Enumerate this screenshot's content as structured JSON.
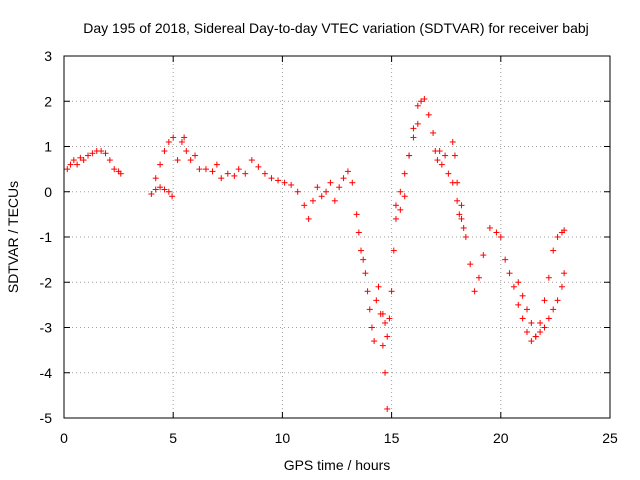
{
  "chart_data": {
    "type": "scatter",
    "title": "Day 195 of 2018, Sidereal Day-to-day VTEC variation (SDTVAR) for receiver babj",
    "xlabel": "GPS time / hours",
    "ylabel": "SDTVAR / TECUs",
    "xlim": [
      0,
      25
    ],
    "ylim": [
      -5,
      3
    ],
    "xticks": [
      0,
      5,
      10,
      15,
      20,
      25
    ],
    "yticks": [
      -5,
      -4,
      -3,
      -2,
      -1,
      0,
      1,
      2,
      3
    ],
    "xtick_labels": [
      "0",
      "5",
      "10",
      "15",
      "20",
      "25"
    ],
    "ytick_labels": [
      "-5",
      "-4",
      "-3",
      "-2",
      "-1",
      "0",
      "1",
      "2",
      "3"
    ],
    "grid": true,
    "marker": "+",
    "color": "#ff0000",
    "series": [
      {
        "name": "SDTVAR",
        "x": [
          0.15,
          0.3,
          0.45,
          0.6,
          0.75,
          0.9,
          1.1,
          1.3,
          1.5,
          1.7,
          1.9,
          2.1,
          2.3,
          2.5,
          2.6,
          4.0,
          4.2,
          4.4,
          4.6,
          4.8,
          4.95,
          4.2,
          4.4,
          4.6,
          4.8,
          5.0,
          5.2,
          5.4,
          5.5,
          5.6,
          5.8,
          6.0,
          6.2,
          6.5,
          6.8,
          7.0,
          7.2,
          7.5,
          7.8,
          8.0,
          8.3,
          8.6,
          8.9,
          9.2,
          9.5,
          9.8,
          10.1,
          10.4,
          10.7,
          11.0,
          11.2,
          11.4,
          11.6,
          11.8,
          12.0,
          12.2,
          12.4,
          12.6,
          12.8,
          13.0,
          13.2,
          13.4,
          13.5,
          13.6,
          13.7,
          13.8,
          13.9,
          14.0,
          14.1,
          14.2,
          14.3,
          14.4,
          14.5,
          14.6,
          14.7,
          14.8,
          14.6,
          14.7,
          14.8,
          14.9,
          15.0,
          15.1,
          15.2,
          15.4,
          15.6,
          15.8,
          16.0,
          16.2,
          16.35,
          15.2,
          15.4,
          15.6,
          15.8,
          16.0,
          16.2,
          16.5,
          16.7,
          16.9,
          17.0,
          17.1,
          17.2,
          17.3,
          17.45,
          17.6,
          17.8,
          18.0,
          18.1,
          18.2,
          18.3,
          17.8,
          17.9,
          18.0,
          18.2,
          18.4,
          18.6,
          18.8,
          19.0,
          19.2,
          19.5,
          19.8,
          20.0,
          20.2,
          20.4,
          20.6,
          20.8,
          21.0,
          21.2,
          21.4,
          21.6,
          21.8,
          22.0,
          22.2,
          22.4,
          22.6,
          22.8,
          22.9,
          20.8,
          21.0,
          21.2,
          21.4,
          21.6,
          21.8,
          22.0,
          22.2,
          22.4,
          22.6,
          22.8,
          22.9
        ],
        "y": [
          0.5,
          0.6,
          0.7,
          0.6,
          0.75,
          0.7,
          0.8,
          0.85,
          0.9,
          0.9,
          0.85,
          0.7,
          0.5,
          0.45,
          0.4,
          -0.05,
          0.05,
          0.1,
          0.05,
          0.0,
          -0.1,
          0.3,
          0.6,
          0.9,
          1.1,
          1.2,
          0.7,
          1.1,
          1.2,
          0.9,
          0.7,
          0.8,
          0.5,
          0.5,
          0.45,
          0.6,
          0.3,
          0.4,
          0.35,
          0.5,
          0.4,
          0.7,
          0.55,
          0.4,
          0.3,
          0.25,
          0.2,
          0.15,
          0.0,
          -0.3,
          -0.6,
          -0.2,
          0.1,
          -0.1,
          0.0,
          0.2,
          -0.2,
          0.1,
          0.3,
          0.45,
          0.2,
          -0.5,
          -0.9,
          -1.3,
          -1.5,
          -1.8,
          -2.2,
          -2.6,
          -3.0,
          -3.3,
          -2.4,
          -2.1,
          -2.7,
          -3.4,
          -4.0,
          -4.8,
          -2.7,
          -2.9,
          -3.2,
          -2.8,
          -2.2,
          -1.3,
          -0.6,
          -0.4,
          -0.1,
          0.8,
          1.2,
          1.5,
          2.0,
          -0.3,
          0.0,
          0.4,
          0.8,
          1.4,
          1.9,
          2.05,
          1.7,
          1.3,
          0.9,
          0.7,
          0.9,
          0.6,
          0.8,
          0.4,
          0.2,
          -0.2,
          -0.5,
          -0.6,
          -0.8,
          1.1,
          0.8,
          0.2,
          -0.3,
          -1.0,
          -1.6,
          -2.2,
          -1.9,
          -1.4,
          -0.8,
          -0.9,
          -1.0,
          -1.5,
          -1.8,
          -2.1,
          -2.5,
          -2.8,
          -3.1,
          -3.3,
          -3.2,
          -2.9,
          -2.4,
          -1.9,
          -1.3,
          -1.0,
          -0.9,
          -0.85,
          -2.0,
          -2.3,
          -2.6,
          -2.9,
          -3.2,
          -3.1,
          -3.0,
          -2.8,
          -2.6,
          -2.4,
          -2.1,
          -1.8
        ]
      }
    ]
  }
}
